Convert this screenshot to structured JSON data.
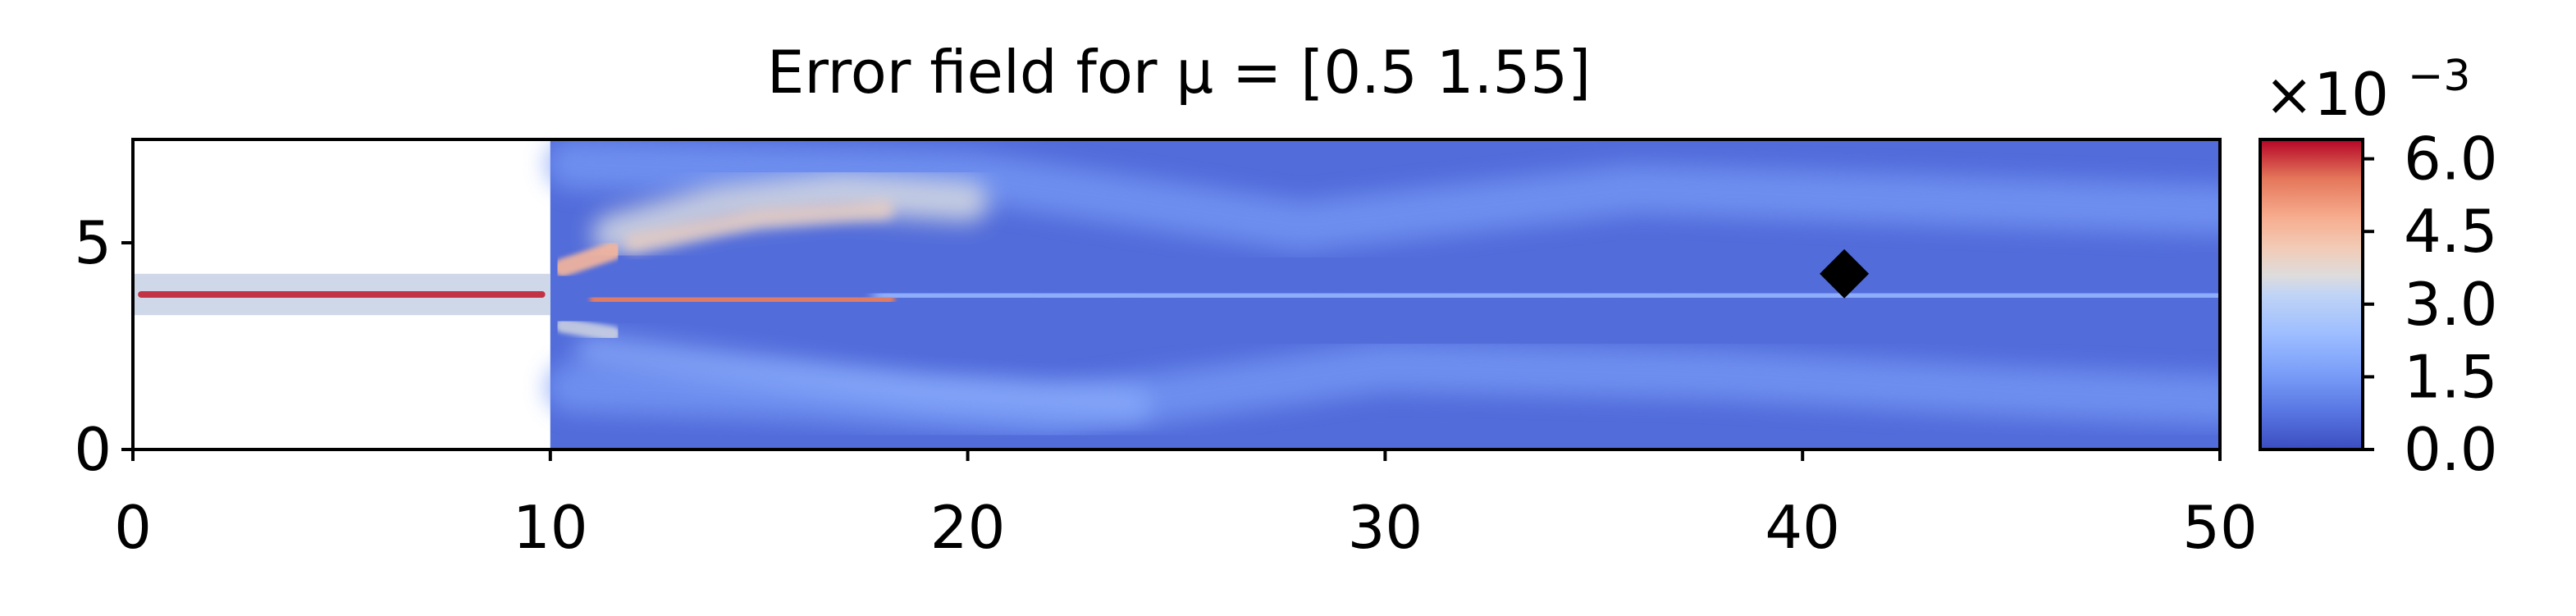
{
  "chart_data": {
    "type": "heatmap",
    "title": "Error field for μ = [0.5  1.55]",
    "xlabel": "",
    "ylabel": "",
    "xlim": [
      0,
      50
    ],
    "ylim": [
      0,
      7.5
    ],
    "xticks": [
      0,
      10,
      20,
      30,
      40,
      50
    ],
    "yticks": [
      0,
      5
    ],
    "grid": false,
    "domain": {
      "inlet_channel": {
        "x": [
          0,
          10
        ],
        "y": [
          3.25,
          4.25
        ]
      },
      "main_chamber": {
        "x": [
          10,
          50
        ],
        "y": [
          0,
          7.5
        ]
      }
    },
    "marker": {
      "shape": "diamond",
      "color": "#000000",
      "x": 41,
      "y": 4.25
    },
    "colorbar": {
      "colormap": "coolwarm",
      "min": 0.0,
      "max": 0.0064,
      "ticks": [
        0.0,
        1.5,
        3.0,
        4.5,
        6.0
      ],
      "tick_labels": [
        "0.0",
        "1.5",
        "3.0",
        "4.5",
        "6.0"
      ],
      "offset_label": "×10",
      "offset_exponent": "−3"
    },
    "field_features": [
      {
        "region": "inlet jet centerline, x 0–10, y ≈ 3.75",
        "level_e3": 5.8
      },
      {
        "region": "jet core downstream of expansion, x 11–18, y ≈ 3.6",
        "level_e3": 5.5
      },
      {
        "region": "upper shear layer, x 11–20, y ≈ 5–6.5",
        "level_e3": 3.5
      },
      {
        "region": "central streak, x 20–50, y ≈ 3.75",
        "level_e3": 2.2
      },
      {
        "region": "upper wall band, x 10–50",
        "level_e3": 1.5
      },
      {
        "region": "lower wall band, x 10–50",
        "level_e3": 1.5
      },
      {
        "region": "background",
        "level_e3": 0.6
      }
    ]
  },
  "colors": {
    "cmap_low": "#3b4cc0",
    "cmap_mid": "#dddddd",
    "cmap_high": "#b40426",
    "axis": "#000000"
  }
}
